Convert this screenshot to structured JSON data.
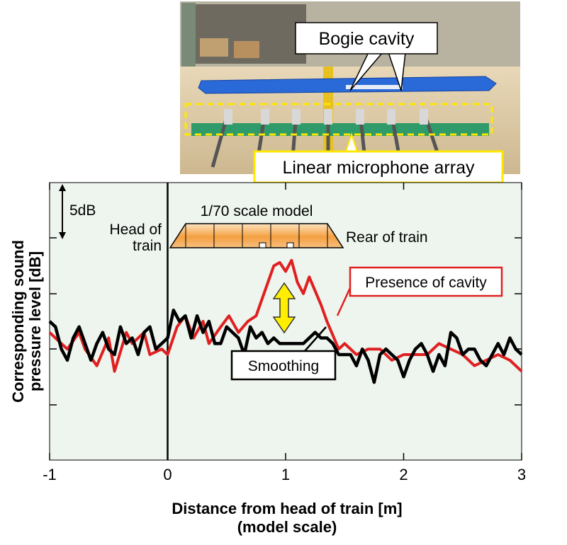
{
  "photo": {
    "bogie_label": "Bogie cavity",
    "array_label": "Linear microphone array"
  },
  "annotations": {
    "scale_bar": "5dB",
    "model_label": "1/70 scale model",
    "head_label_line1": "Head of",
    "head_label_line2": "train",
    "rear_label": "Rear of train",
    "cavity_label": "Presence of cavity",
    "smoothing_label": "Smoothing"
  },
  "colors": {
    "plot_bg": "#eef5ee",
    "cavity_series": "#e02020",
    "smoothing_series": "#000000",
    "arrow": "#ffee00",
    "train_body": "#f4a040"
  },
  "chart_data": {
    "type": "line",
    "xlabel_line1": "Distance from head of train [m]",
    "xlabel_line2": "(model scale)",
    "ylabel_line1": "Corresponding sound",
    "ylabel_line2": "pressure level [dB]",
    "xlim": [
      -1,
      3
    ],
    "ylim": [
      -10,
      15
    ],
    "xticks": [
      "-1",
      "0",
      "1",
      "2",
      "3"
    ],
    "grid": false,
    "series": [
      {
        "name": "Presence of cavity",
        "color": "#e02020",
        "x": [
          -1.0,
          -0.9,
          -0.85,
          -0.75,
          -0.7,
          -0.6,
          -0.5,
          -0.45,
          -0.35,
          -0.3,
          -0.2,
          -0.15,
          -0.05,
          0.0,
          0.08,
          0.15,
          0.22,
          0.3,
          0.35,
          0.45,
          0.52,
          0.6,
          0.68,
          0.75,
          0.8,
          0.85,
          0.9,
          0.95,
          1.0,
          1.05,
          1.1,
          1.15,
          1.2,
          1.3,
          1.35,
          1.45,
          1.5,
          1.6,
          1.7,
          1.8,
          1.9,
          2.0,
          2.1,
          2.2,
          2.3,
          2.4,
          2.5,
          2.6,
          2.7,
          2.8,
          2.9,
          3.0
        ],
        "y": [
          1.5,
          0.5,
          0.0,
          1.5,
          0.0,
          -1.5,
          1.0,
          -2.0,
          1.5,
          0.5,
          1.5,
          -0.5,
          0.0,
          -0.5,
          2.0,
          3.0,
          1.0,
          2.5,
          0.5,
          2.0,
          3.0,
          1.5,
          2.5,
          3.0,
          4.5,
          6.0,
          7.5,
          7.8,
          7.0,
          8.0,
          6.0,
          5.0,
          6.5,
          4.0,
          2.5,
          0.0,
          0.5,
          -0.5,
          0.0,
          0.0,
          -1.0,
          -0.5,
          -0.5,
          -0.5,
          0.5,
          0.0,
          -0.5,
          -1.5,
          -1.0,
          -0.5,
          -1.0,
          -2.0
        ]
      },
      {
        "name": "Smoothing",
        "color": "#000000",
        "x": [
          -1.0,
          -0.95,
          -0.9,
          -0.85,
          -0.8,
          -0.75,
          -0.7,
          -0.65,
          -0.6,
          -0.55,
          -0.5,
          -0.45,
          -0.4,
          -0.35,
          -0.3,
          -0.25,
          -0.2,
          -0.15,
          -0.1,
          -0.05,
          0.0,
          0.05,
          0.1,
          0.15,
          0.2,
          0.25,
          0.3,
          0.35,
          0.4,
          0.45,
          0.5,
          0.55,
          0.6,
          0.65,
          0.7,
          0.75,
          0.8,
          0.85,
          0.9,
          0.95,
          1.0,
          1.05,
          1.1,
          1.15,
          1.2,
          1.25,
          1.3,
          1.35,
          1.4,
          1.45,
          1.5,
          1.55,
          1.6,
          1.65,
          1.7,
          1.75,
          1.8,
          1.85,
          1.9,
          1.95,
          2.0,
          2.05,
          2.1,
          2.15,
          2.2,
          2.25,
          2.3,
          2.35,
          2.4,
          2.45,
          2.5,
          2.55,
          2.6,
          2.65,
          2.7,
          2.75,
          2.8,
          2.85,
          2.9,
          2.95,
          3.0
        ],
        "y": [
          2.5,
          2.0,
          0.0,
          -1.0,
          1.0,
          2.0,
          0.5,
          -1.0,
          0.5,
          1.5,
          0.0,
          -0.5,
          2.0,
          0.5,
          1.0,
          -0.5,
          1.5,
          2.0,
          0.0,
          0.5,
          1.0,
          3.5,
          2.5,
          3.0,
          1.0,
          3.0,
          1.5,
          2.5,
          0.5,
          0.5,
          2.0,
          1.5,
          1.0,
          -0.5,
          2.0,
          1.0,
          1.5,
          0.5,
          1.0,
          0.5,
          0.5,
          0.5,
          0.5,
          0.5,
          1.0,
          1.5,
          1.0,
          1.0,
          0.5,
          -0.5,
          -0.5,
          -0.5,
          -1.5,
          0.0,
          -1.0,
          -3.0,
          -0.5,
          0.0,
          -0.5,
          -1.0,
          -2.5,
          -1.0,
          0.0,
          0.5,
          -0.5,
          -2.0,
          -0.5,
          -1.5,
          1.5,
          1.0,
          -0.5,
          0.0,
          0.0,
          -1.0,
          -1.5,
          -0.5,
          0.5,
          -0.5,
          1.0,
          0.0,
          -0.5
        ]
      }
    ]
  }
}
